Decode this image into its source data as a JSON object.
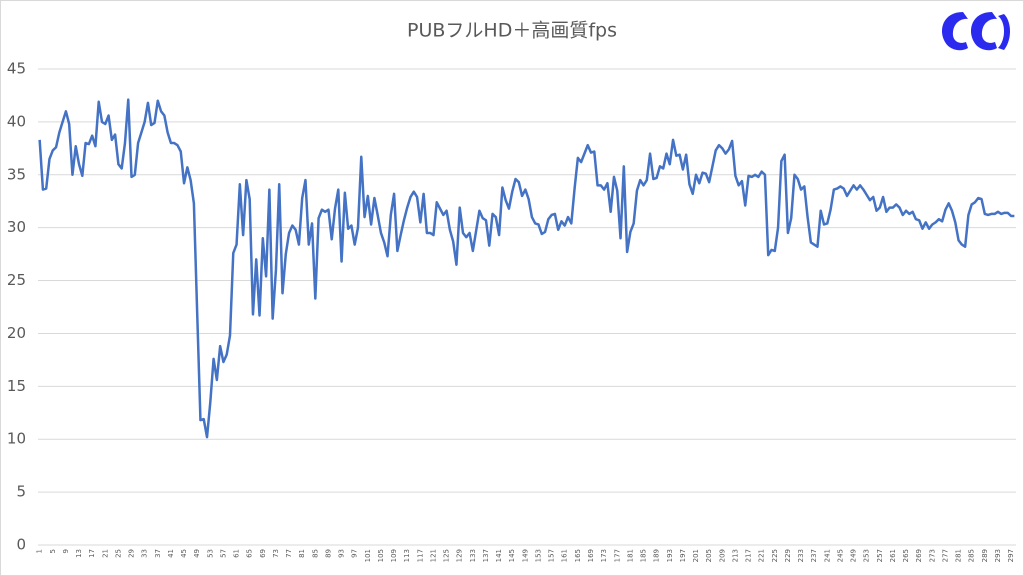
{
  "chart_data": {
    "type": "line",
    "title": "PUBフルHD＋高画質fps",
    "categories": [
      1,
      null,
      null,
      null,
      5,
      null,
      null,
      null,
      9,
      null,
      null,
      null,
      13,
      null,
      null,
      null,
      17,
      null,
      null,
      null,
      21,
      null,
      null,
      null,
      25,
      null,
      null,
      null,
      29,
      null,
      null,
      null,
      33,
      null,
      null,
      null,
      37,
      null,
      null,
      null,
      41,
      null,
      null,
      null,
      45,
      null,
      null,
      null,
      49,
      null,
      null,
      null,
      53,
      null,
      null,
      null,
      57,
      null,
      null,
      null,
      61,
      null,
      null,
      null,
      65,
      null,
      null,
      null,
      69,
      null,
      null,
      null,
      73,
      null,
      null,
      null,
      77,
      null,
      null,
      null,
      81,
      null,
      null,
      null,
      85,
      null,
      null,
      null,
      89,
      null,
      null,
      null,
      93,
      null,
      null,
      null,
      97,
      null,
      null,
      null,
      101,
      null,
      null,
      null,
      105,
      null,
      null,
      null,
      109,
      null,
      null,
      null,
      113,
      null,
      null,
      null,
      117,
      null,
      null,
      null,
      121,
      null,
      null,
      null,
      125,
      null,
      null,
      null,
      129,
      null,
      null,
      null,
      133,
      null,
      null,
      null,
      137,
      null,
      null,
      null,
      141,
      null,
      null,
      null,
      145,
      null,
      null,
      null,
      149,
      null,
      null,
      null,
      153,
      null,
      null,
      null,
      157,
      null,
      null,
      null,
      161,
      null,
      null,
      null,
      165,
      null,
      null,
      null,
      169,
      null,
      null,
      null,
      173,
      null,
      null,
      null,
      177,
      null,
      null,
      null,
      181,
      null,
      null,
      null,
      185,
      null,
      null,
      null,
      189,
      null,
      null,
      null,
      193,
      null,
      null,
      null,
      197,
      null,
      null,
      null,
      201,
      null,
      null,
      null,
      205,
      null,
      null,
      null,
      209,
      null,
      null,
      null,
      213,
      null,
      null,
      null,
      217,
      null,
      null,
      null,
      221,
      null,
      null,
      null,
      225,
      null,
      null,
      null,
      229,
      null,
      null,
      null,
      233,
      null,
      null,
      null,
      237,
      null,
      null,
      null,
      241,
      null,
      null,
      null,
      245,
      null,
      null,
      null,
      249,
      null,
      null,
      null,
      253,
      null,
      null,
      null,
      257,
      null,
      null,
      null,
      261,
      null,
      null,
      null,
      265,
      null,
      null,
      null,
      269,
      null,
      null,
      null,
      273,
      null,
      null,
      null,
      277,
      null,
      null,
      null,
      281,
      null,
      null,
      null,
      285,
      null,
      null,
      null,
      289,
      null,
      null,
      null,
      293,
      null,
      null,
      null,
      297,
      null
    ],
    "values": [
      38.3,
      33.6,
      33.7,
      36.5,
      37.3,
      37.6,
      39,
      40,
      41,
      39.8,
      35,
      37.7,
      36,
      34.9,
      38,
      37.9,
      38.7,
      37.7,
      41.9,
      40,
      39.8,
      40.6,
      38.3,
      38.8,
      36,
      35.6,
      38,
      42.1,
      34.8,
      35,
      38,
      39,
      40,
      41.8,
      39.7,
      39.9,
      42,
      41,
      40.6,
      39,
      38,
      38,
      37.8,
      37.2,
      34.2,
      35.7,
      34.5,
      32.3,
      22,
      11.8,
      11.9,
      10.2,
      13.5,
      17.6,
      15.6,
      18.8,
      17.3,
      18,
      19.8,
      27.6,
      28.4,
      34.1,
      29.3,
      34.5,
      32.7,
      21.8,
      27,
      21.7,
      29,
      25.4,
      33.6,
      21.4,
      26,
      34.1,
      23.8,
      27.5,
      29.5,
      30.2,
      29.8,
      28.4,
      32.8,
      34.5,
      28.4,
      30.4,
      23.3,
      30.9,
      31.7,
      31.5,
      31.7,
      28.9,
      31.8,
      33.6,
      26.8,
      33.3,
      29.9,
      30.2,
      28.4,
      30,
      36.7,
      31,
      33,
      30.3,
      32.8,
      31.2,
      29.5,
      28.6,
      27.3,
      31.2,
      33.2,
      27.8,
      29.3,
      30.7,
      31.9,
      32.9,
      33.4,
      32.9,
      30.5,
      33.2,
      29.5,
      29.5,
      29.3,
      32.4,
      31.8,
      31.2,
      31.6,
      29.8,
      28.7,
      26.5,
      31.9,
      29.5,
      29.1,
      29.5,
      27.8,
      29.7,
      31.6,
      30.9,
      30.7,
      28.3,
      31.3,
      31,
      29.3,
      33.8,
      32.6,
      31.8,
      33.4,
      34.6,
      34.3,
      33,
      33.6,
      32.7,
      31,
      30.4,
      30.3,
      29.4,
      29.6,
      30.8,
      31.2,
      31.3,
      29.8,
      30.6,
      30.2,
      31,
      30.4,
      33.7,
      36.6,
      36.2,
      37,
      37.8,
      37.1,
      37.2,
      34,
      34,
      33.6,
      34.2,
      31.5,
      34.8,
      33.5,
      29,
      35.8,
      27.7,
      29.6,
      30.4,
      33.5,
      34.5,
      34,
      34.5,
      37,
      34.6,
      34.7,
      35.8,
      35.6,
      37,
      36,
      38.3,
      36.8,
      36.9,
      35.5,
      36.9,
      34.1,
      33.2,
      35,
      34.2,
      35.2,
      35.1,
      34.3,
      35.8,
      37.3,
      37.8,
      37.5,
      37,
      37.4,
      38.2,
      34.9,
      34,
      34.4,
      32.1,
      34.9,
      34.8,
      35,
      34.8,
      35.3,
      35,
      27.4,
      27.9,
      27.8,
      30,
      36.3,
      36.9,
      29.5,
      30.9,
      35,
      34.6,
      33.6,
      33.9,
      31,
      28.6,
      28.4,
      28.2,
      31.6,
      30.3,
      30.4,
      31.7,
      33.6,
      33.7,
      33.9,
      33.7,
      33,
      33.5,
      34,
      33.6,
      34,
      33.6,
      33.1,
      32.6,
      32.9,
      31.6,
      31.9,
      32.9,
      31.5,
      31.9,
      31.9,
      32.2,
      31.9,
      31.2,
      31.6,
      31.3,
      31.5,
      30.8,
      30.7,
      29.9,
      30.5,
      29.9,
      30.3,
      30.5,
      30.8,
      30.6,
      31.7,
      32.3,
      31.6,
      30.5,
      28.8,
      28.4,
      28.2,
      31.2,
      32.2,
      32.4,
      32.8,
      32.7,
      31.3,
      31.2,
      31.3,
      31.3,
      31.5,
      31.3,
      31.4,
      31.4,
      31.1,
      31.1
    ],
    "color": "#4472c4",
    "ylim": [
      0,
      45
    ],
    "yticks": [
      0,
      5,
      10,
      15,
      20,
      25,
      30,
      35,
      40,
      45
    ],
    "grid": true
  }
}
